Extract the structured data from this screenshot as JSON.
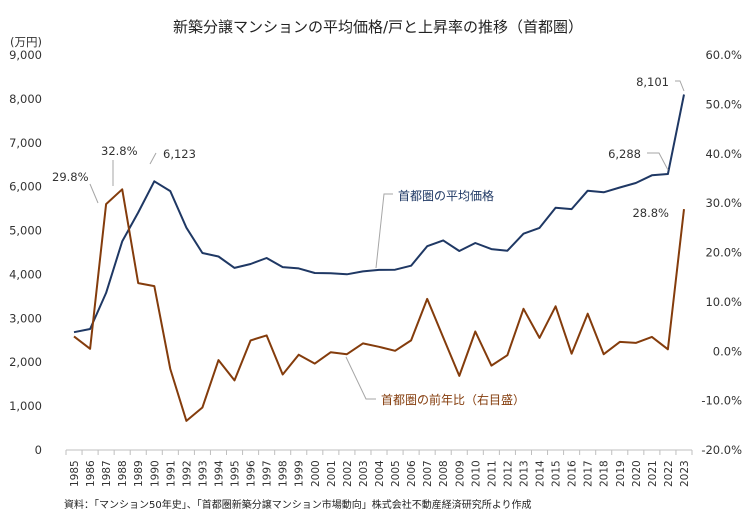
{
  "chart_data": {
    "type": "line",
    "title": "新築分譲マンションの平均価格/戸と上昇率の推移（首都圏）",
    "y_unit_label": "(万円)",
    "source": "資料：「マンション50年史」、「首都圏新築分譲マンション市場動向」株式会社不動産経済研究所より作成",
    "categories": [
      "1985",
      "1986",
      "1987",
      "1988",
      "1989",
      "1990",
      "1991",
      "1992",
      "1993",
      "1994",
      "1995",
      "1996",
      "1997",
      "1998",
      "1999",
      "2000",
      "2001",
      "2002",
      "2003",
      "2004",
      "2005",
      "2006",
      "2007",
      "2008",
      "2009",
      "2010",
      "2011",
      "2012",
      "2013",
      "2014",
      "2015",
      "2016",
      "2017",
      "2018",
      "2019",
      "2020",
      "2021",
      "2022",
      "2023"
    ],
    "left_axis": {
      "ylim": [
        0,
        9000
      ],
      "ticks": [
        "0",
        "1,000",
        "2,000",
        "3,000",
        "4,000",
        "5,000",
        "6,000",
        "7,000",
        "8,000",
        "9,000"
      ]
    },
    "right_axis": {
      "ylim": [
        -20,
        60
      ],
      "ticks": [
        "-20.0%",
        "-10.0%",
        "0.0%",
        "10.0%",
        "20.0%",
        "30.0%",
        "40.0%",
        "50.0%",
        "60.0%"
      ]
    },
    "series": [
      {
        "name": "首都圏の平均価格",
        "axis": "left",
        "color": "#1f3864",
        "values": [
          2683,
          2758,
          3579,
          4753,
          5411,
          6123,
          5900,
          5066,
          4488,
          4409,
          4148,
          4238,
          4374,
          4168,
          4138,
          4034,
          4026,
          4003,
          4069,
          4104,
          4108,
          4200,
          4644,
          4775,
          4535,
          4716,
          4578,
          4540,
          4929,
          5060,
          5518,
          5490,
          5908,
          5871,
          5980,
          6083,
          6260,
          6288,
          8101
        ],
        "labels": [
          {
            "index": 5,
            "text": "6,123"
          },
          {
            "index": 37,
            "text": "6,288"
          },
          {
            "index": 38,
            "text": "8,101"
          }
        ]
      },
      {
        "name": "首都圏の前年比（右目盛）",
        "axis": "right",
        "color": "#843c0c",
        "values": [
          3.0,
          0.5,
          29.8,
          32.8,
          13.8,
          13.2,
          -3.6,
          -14.1,
          -11.4,
          -1.8,
          -5.9,
          2.2,
          3.2,
          -4.7,
          -0.7,
          -2.5,
          -0.2,
          -0.6,
          1.6,
          0.9,
          0.1,
          2.2,
          10.6,
          2.8,
          -5.0,
          4.0,
          -2.9,
          -0.8,
          8.6,
          2.7,
          9.1,
          -0.5,
          7.6,
          -0.6,
          1.9,
          1.7,
          2.9,
          0.4,
          28.8
        ],
        "labels": [
          {
            "index": 2,
            "text": "29.8%"
          },
          {
            "index": 3,
            "text": "32.8%"
          },
          {
            "index": 38,
            "text": "28.8%"
          }
        ]
      }
    ],
    "callouts": [
      {
        "series": 0,
        "text": "首都圏の平均価格"
      },
      {
        "series": 1,
        "text": "首都圏の前年比（右目盛）"
      }
    ],
    "grid": false,
    "legend": "none"
  }
}
